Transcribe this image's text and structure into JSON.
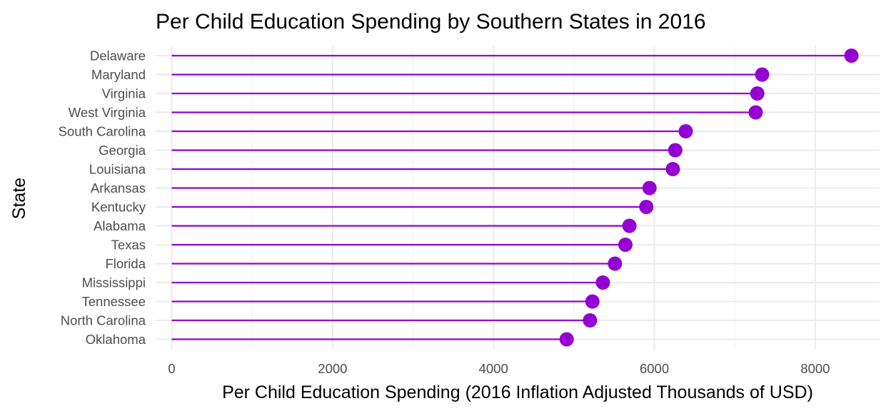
{
  "chart_data": {
    "type": "lollipop",
    "title": "Per Child Education Spending by Southern States in 2016",
    "xlabel": "Per Child Education Spending (2016 Inflation Adjusted Thousands of USD)",
    "ylabel": "State",
    "xlim": [
      -200,
      8800
    ],
    "x_ticks": [
      0,
      2000,
      4000,
      6000,
      8000
    ],
    "x_tick_labels": [
      "0",
      "2000",
      "4000",
      "6000",
      "8000"
    ],
    "grid": true,
    "legend": "none",
    "color": "#9400d3",
    "categories": [
      "Delaware",
      "Maryland",
      "Virginia",
      "West Virginia",
      "South Carolina",
      "Georgia",
      "Louisiana",
      "Arkansas",
      "Kentucky",
      "Alabama",
      "Texas",
      "Florida",
      "Mississippi",
      "Tennessee",
      "North Carolina",
      "Oklahoma"
    ],
    "values": [
      8450,
      7340,
      7280,
      7260,
      6390,
      6260,
      6230,
      5940,
      5900,
      5690,
      5640,
      5510,
      5360,
      5230,
      5200,
      4910
    ]
  }
}
